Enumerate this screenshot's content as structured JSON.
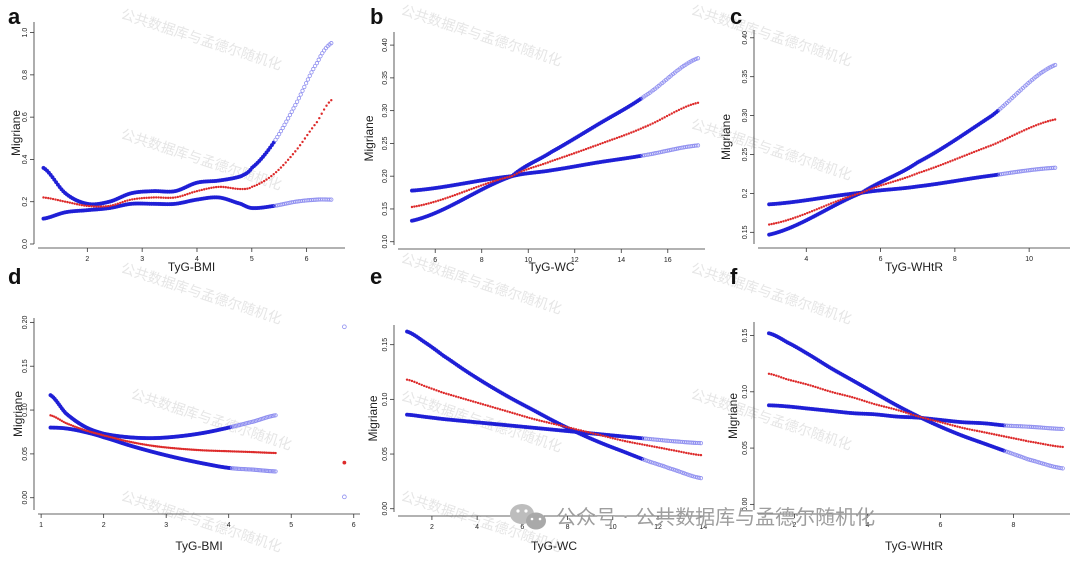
{
  "chart_data": [
    {
      "panel": "a",
      "type": "line",
      "xlabel": "TyG-BMI",
      "ylabel": "Migriane",
      "xlim": [
        1.1,
        6.7
      ],
      "ylim": [
        0,
        1.05
      ],
      "xticks": [
        "2",
        "3",
        "4",
        "5",
        "6"
      ],
      "yticks": [
        "0.0",
        "0.2",
        "0.4",
        "0.6",
        "0.8",
        "1.0"
      ],
      "x_start": 1.2,
      "x_end": 6.45,
      "series": [
        {
          "role": "upper",
          "x": [
            1.2,
            1.6,
            2.0,
            2.4,
            2.8,
            3.2,
            3.6,
            4.0,
            4.4,
            4.8,
            5.0,
            5.4,
            5.8,
            6.2,
            6.45
          ],
          "y": [
            0.36,
            0.24,
            0.19,
            0.2,
            0.24,
            0.25,
            0.25,
            0.29,
            0.3,
            0.32,
            0.36,
            0.48,
            0.66,
            0.86,
            0.95
          ]
        },
        {
          "role": "estimate",
          "x": [
            1.2,
            1.6,
            2.0,
            2.4,
            2.8,
            3.2,
            3.6,
            4.0,
            4.4,
            4.8,
            5.0,
            5.4,
            5.8,
            6.2,
            6.45
          ],
          "y": [
            0.22,
            0.2,
            0.18,
            0.18,
            0.21,
            0.22,
            0.22,
            0.25,
            0.27,
            0.26,
            0.27,
            0.33,
            0.44,
            0.58,
            0.68
          ]
        },
        {
          "role": "lower",
          "x": [
            1.2,
            1.6,
            2.0,
            2.4,
            2.8,
            3.2,
            3.6,
            4.0,
            4.4,
            4.8,
            5.0,
            5.4,
            5.8,
            6.2,
            6.45
          ],
          "y": [
            0.12,
            0.15,
            0.16,
            0.17,
            0.19,
            0.19,
            0.19,
            0.21,
            0.22,
            0.19,
            0.17,
            0.18,
            0.2,
            0.21,
            0.21
          ]
        }
      ]
    },
    {
      "panel": "b",
      "type": "line",
      "xlabel": "TyG-WC",
      "ylabel": "Migriane",
      "xlim": [
        4.4,
        17.6
      ],
      "ylim": [
        0.095,
        0.42
      ],
      "xticks": [
        "6",
        "8",
        "10",
        "12",
        "14",
        "16"
      ],
      "yticks": [
        "0.10",
        "0.15",
        "0.20",
        "0.25",
        "0.30",
        "0.35",
        "0.40"
      ],
      "x_start": 5.0,
      "x_end": 17.3,
      "series": [
        {
          "role": "upper",
          "x": [
            5.0,
            9.3,
            11,
            13,
            15,
            17.3
          ],
          "y": [
            0.132,
            0.2,
            0.237,
            0.279,
            0.322,
            0.38
          ]
        },
        {
          "role": "estimate",
          "x": [
            5.0,
            9.3,
            11,
            13,
            15,
            17.3
          ],
          "y": [
            0.153,
            0.2,
            0.223,
            0.248,
            0.275,
            0.312
          ]
        },
        {
          "role": "lower",
          "x": [
            5.0,
            9.3,
            11,
            13,
            15,
            17.3
          ],
          "y": [
            0.178,
            0.2,
            0.209,
            0.221,
            0.232,
            0.247
          ]
        }
      ]
    },
    {
      "panel": "c",
      "type": "line",
      "xlabel": "TyG-WHtR",
      "ylabel": "Migriane",
      "xlim": [
        2.7,
        11.1
      ],
      "ylim": [
        0.135,
        0.41
      ],
      "xticks": [
        "4",
        "6",
        "8",
        "10"
      ],
      "yticks": [
        "0.15",
        "0.2",
        "0.25",
        "0.30",
        "0.35",
        "0.40"
      ],
      "x_start": 3.0,
      "x_end": 10.7,
      "series": [
        {
          "role": "upper",
          "x": [
            3.0,
            5.5,
            7,
            9,
            10.7
          ],
          "y": [
            0.147,
            0.201,
            0.24,
            0.3,
            0.365
          ]
        },
        {
          "role": "estimate",
          "x": [
            3.0,
            5.5,
            7,
            9,
            10.7
          ],
          "y": [
            0.16,
            0.201,
            0.226,
            0.262,
            0.295
          ]
        },
        {
          "role": "lower",
          "x": [
            3.0,
            5.5,
            7,
            9,
            10.7
          ],
          "y": [
            0.186,
            0.201,
            0.209,
            0.223,
            0.233
          ]
        }
      ]
    },
    {
      "panel": "d",
      "type": "line",
      "xlabel": "TyG-BMI",
      "ylabel": "Migriane",
      "xlim": [
        0.95,
        6.1
      ],
      "ylim": [
        -0.014,
        0.205
      ],
      "xticks": [
        "1",
        "2",
        "3",
        "4",
        "5",
        "6"
      ],
      "yticks": [
        "0.00",
        "0.05",
        "0.10",
        "0.15",
        "0.20"
      ],
      "x_start": 1.15,
      "x_end": 4.75,
      "series": [
        {
          "role": "upper",
          "x": [
            1.15,
            1.4,
            1.7,
            2.0,
            2.4,
            2.8,
            3.2,
            3.6,
            4.0,
            4.4,
            4.75
          ],
          "y": [
            0.117,
            0.096,
            0.081,
            0.073,
            0.069,
            0.068,
            0.07,
            0.074,
            0.08,
            0.087,
            0.094
          ]
        },
        {
          "role": "estimate",
          "x": [
            1.15,
            1.4,
            1.7,
            2.0,
            2.4,
            2.8,
            3.2,
            3.6,
            4.0,
            4.4,
            4.75
          ],
          "y": [
            0.094,
            0.085,
            0.077,
            0.071,
            0.064,
            0.059,
            0.056,
            0.054,
            0.053,
            0.052,
            0.051
          ]
        },
        {
          "role": "lower",
          "x": [
            1.15,
            1.4,
            1.7,
            2.0,
            2.4,
            2.8,
            3.2,
            3.6,
            4.0,
            4.4,
            4.75
          ],
          "y": [
            0.08,
            0.079,
            0.075,
            0.069,
            0.06,
            0.052,
            0.045,
            0.039,
            0.034,
            0.032,
            0.03
          ]
        }
      ],
      "outliers": [
        {
          "role": "upper",
          "x": 5.85,
          "y": 0.195
        },
        {
          "role": "estimate",
          "x": 5.85,
          "y": 0.04
        },
        {
          "role": "lower",
          "x": 5.85,
          "y": 0.001
        }
      ]
    },
    {
      "panel": "e",
      "type": "line",
      "xlabel": "TyG-WC",
      "ylabel": "Migriane",
      "xlim": [
        0.5,
        14.3
      ],
      "ylim": [
        -0.003,
        0.168
      ],
      "xticks": [
        "2",
        "4",
        "6",
        "8",
        "10",
        "12",
        "14"
      ],
      "yticks": [
        "0.00",
        "0.05",
        "0.10",
        "0.15"
      ],
      "x_start": 0.9,
      "x_end": 13.9,
      "series": [
        {
          "role": "upper",
          "x": [
            0.9,
            1.7,
            2.5,
            3.5,
            4.5,
            5.5,
            6.5,
            7.5,
            8.5,
            9.5,
            10.5,
            11.5,
            12.5,
            13.9
          ],
          "y": [
            0.162,
            0.152,
            0.14,
            0.126,
            0.113,
            0.101,
            0.09,
            0.079,
            0.069,
            0.06,
            0.052,
            0.044,
            0.037,
            0.028
          ]
        },
        {
          "role": "estimate",
          "x": [
            0.9,
            1.7,
            2.5,
            3.5,
            4.5,
            5.5,
            6.5,
            7.5,
            8.5,
            9.5,
            10.5,
            11.5,
            12.5,
            13.9
          ],
          "y": [
            0.118,
            0.112,
            0.106,
            0.1,
            0.094,
            0.088,
            0.082,
            0.077,
            0.072,
            0.067,
            0.062,
            0.058,
            0.054,
            0.049
          ]
        },
        {
          "role": "lower",
          "x": [
            0.9,
            1.7,
            2.5,
            3.5,
            4.5,
            5.5,
            6.5,
            7.5,
            8.5,
            9.5,
            10.5,
            11.5,
            12.5,
            13.9
          ],
          "y": [
            0.086,
            0.084,
            0.082,
            0.08,
            0.078,
            0.076,
            0.074,
            0.072,
            0.07,
            0.068,
            0.066,
            0.064,
            0.062,
            0.06
          ]
        }
      ]
    },
    {
      "panel": "f",
      "type": "line",
      "xlabel": "TyG-WHtR",
      "ylabel": "Migriane",
      "xlim": [
        1.0,
        9.55
      ],
      "ylim": [
        -0.005,
        0.162
      ],
      "xticks": [
        "2",
        "4",
        "6",
        "8"
      ],
      "yticks": [
        "0.00",
        "0.05",
        "0.10",
        "0.15"
      ],
      "x_start": 1.3,
      "x_end": 9.35,
      "series": [
        {
          "role": "upper",
          "x": [
            1.3,
            1.8,
            2.4,
            3.0,
            3.6,
            4.2,
            4.8,
            5.4,
            6.0,
            6.6,
            7.2,
            7.8,
            8.4,
            9.35
          ],
          "y": [
            0.152,
            0.144,
            0.133,
            0.121,
            0.11,
            0.099,
            0.088,
            0.078,
            0.069,
            0.061,
            0.054,
            0.047,
            0.04,
            0.032
          ]
        },
        {
          "role": "estimate",
          "x": [
            1.3,
            1.8,
            2.4,
            3.0,
            3.6,
            4.2,
            4.8,
            5.4,
            6.0,
            6.6,
            7.2,
            7.8,
            8.4,
            9.35
          ],
          "y": [
            0.116,
            0.111,
            0.106,
            0.1,
            0.095,
            0.089,
            0.084,
            0.078,
            0.073,
            0.068,
            0.064,
            0.06,
            0.056,
            0.051
          ]
        },
        {
          "role": "lower",
          "x": [
            1.3,
            1.8,
            2.4,
            3.0,
            3.6,
            4.2,
            4.8,
            5.4,
            6.0,
            6.6,
            7.2,
            7.8,
            8.4,
            9.35
          ],
          "y": [
            0.088,
            0.087,
            0.085,
            0.083,
            0.081,
            0.08,
            0.078,
            0.077,
            0.075,
            0.073,
            0.072,
            0.07,
            0.069,
            0.067
          ]
        }
      ]
    }
  ],
  "colors": {
    "ci": "#1f1fd6",
    "ci_halo": "#8f8ff0",
    "estimate": "#dd2a2a",
    "axis": "#333333"
  },
  "watermark": {
    "repeat_text": "公共数据库与孟德尔随机化",
    "footer_text": "公众号 · 公共数据库与孟德尔随机化",
    "icon": "wechat-icon"
  }
}
